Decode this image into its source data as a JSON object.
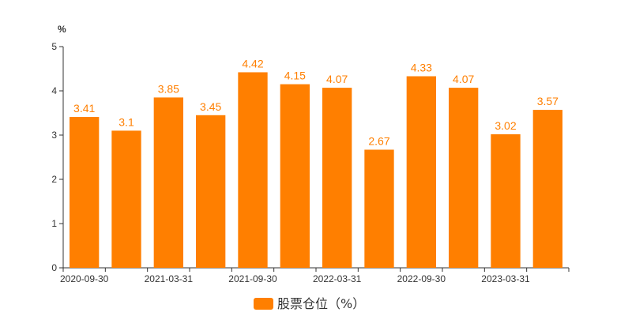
{
  "chart_data": {
    "type": "bar",
    "title": "",
    "xlabel": "",
    "ylabel": "%",
    "ylim": [
      0,
      5
    ],
    "yticks": [
      0,
      1,
      2,
      3,
      4,
      5
    ],
    "categories": [
      "2020-09-30",
      "2020-12-31",
      "2021-03-31",
      "2021-06-30",
      "2021-09-30",
      "2021-12-31",
      "2022-03-31",
      "2022-06-30",
      "2022-09-30",
      "2022-12-31",
      "2023-03-31",
      "2023-06-30"
    ],
    "x_tick_labels": [
      "2020-09-30",
      "",
      "2021-03-31",
      "",
      "2021-09-30",
      "",
      "2022-03-31",
      "",
      "2022-09-30",
      "",
      "2023-03-31",
      ""
    ],
    "series": [
      {
        "name": "股票仓位（%）",
        "color": "#ff7f00",
        "values": [
          3.41,
          3.1,
          3.85,
          3.45,
          4.42,
          4.15,
          4.07,
          2.67,
          4.33,
          4.07,
          3.02,
          3.57
        ]
      }
    ],
    "grid": false,
    "legend_position": "bottom-center"
  }
}
